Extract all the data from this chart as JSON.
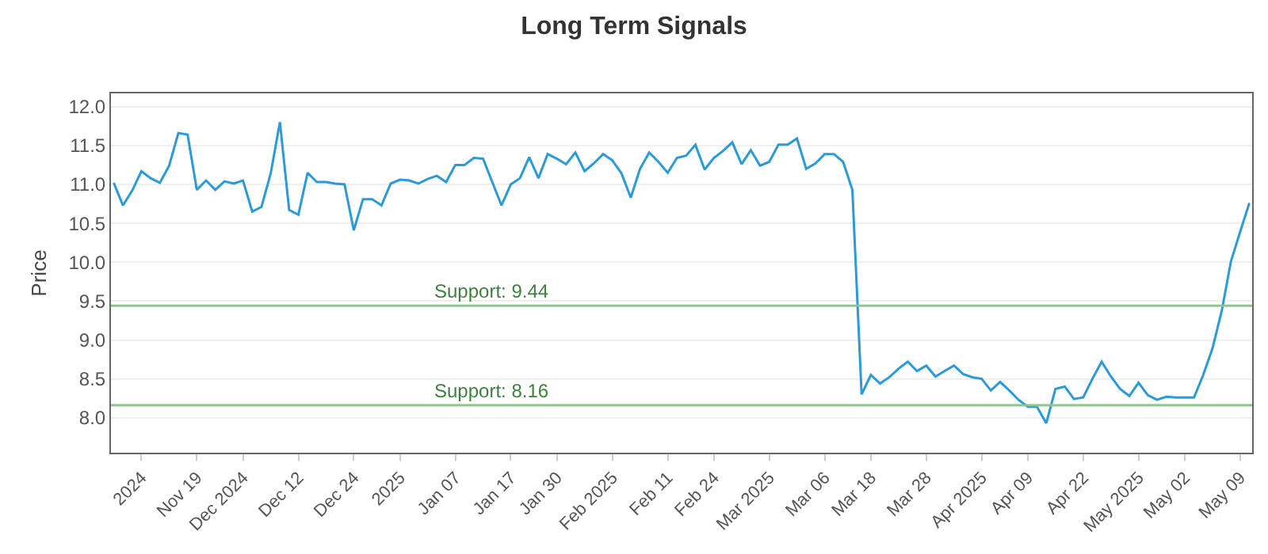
{
  "chart_data": {
    "type": "line",
    "title": "Long Term Signals",
    "ylabel": "Price",
    "categories": [
      null,
      null,
      null,
      "2024",
      null,
      null,
      null,
      null,
      null,
      "Nov 19",
      null,
      null,
      null,
      null,
      "Dec 2024",
      null,
      null,
      null,
      null,
      null,
      "Dec 12",
      null,
      null,
      null,
      null,
      null,
      "Dec 24",
      null,
      null,
      null,
      null,
      "2025",
      null,
      null,
      null,
      null,
      null,
      "Jan 07",
      null,
      null,
      null,
      null,
      null,
      "Jan 17",
      null,
      null,
      null,
      null,
      "Jan 30",
      null,
      null,
      null,
      null,
      null,
      "Feb 2025",
      null,
      null,
      null,
      null,
      null,
      "Feb 11",
      null,
      null,
      null,
      null,
      "Feb 24",
      null,
      null,
      null,
      null,
      null,
      "Mar 2025",
      null,
      null,
      null,
      null,
      null,
      "Mar 06",
      null,
      null,
      null,
      null,
      "Mar 18",
      null,
      null,
      null,
      null,
      null,
      "Mar 28",
      null,
      null,
      null,
      null,
      null,
      "Apr 2025",
      null,
      null,
      null,
      null,
      "Apr 09",
      null,
      null,
      null,
      null,
      null,
      "Apr 22",
      null,
      null,
      null,
      null,
      null,
      "May 2025",
      null,
      null,
      null,
      null,
      "May 02",
      null,
      null,
      null,
      null,
      null,
      "May 09",
      null
    ],
    "series": [
      {
        "color": "#2b9ad6",
        "values": [
          11.02,
          10.73,
          10.92,
          11.17,
          11.08,
          11.02,
          11.24,
          11.66,
          11.64,
          10.93,
          11.05,
          10.93,
          11.04,
          11.01,
          11.05,
          10.65,
          10.71,
          11.14,
          11.8,
          10.67,
          10.61,
          11.15,
          11.03,
          11.03,
          11.01,
          11.0,
          10.41,
          10.81,
          10.81,
          10.73,
          11.01,
          11.06,
          11.05,
          11.01,
          11.07,
          11.11,
          11.03,
          11.25,
          11.25,
          11.34,
          11.33,
          11.03,
          10.73,
          11.0,
          11.08,
          11.35,
          11.08,
          11.39,
          11.33,
          11.26,
          11.41,
          11.17,
          11.27,
          11.39,
          11.31,
          11.14,
          10.83,
          11.2,
          11.41,
          11.29,
          11.15,
          11.34,
          11.37,
          11.51,
          11.19,
          11.34,
          11.43,
          11.54,
          11.26,
          11.44,
          11.24,
          11.29,
          11.51,
          11.51,
          11.59,
          11.2,
          11.27,
          11.39,
          11.39,
          11.29,
          10.93,
          8.3,
          8.55,
          8.44,
          8.52,
          8.63,
          8.72,
          8.6,
          8.67,
          8.53,
          8.6,
          8.67,
          8.56,
          8.52,
          8.5,
          8.35,
          8.46,
          8.35,
          8.23,
          8.14,
          8.14,
          7.93,
          8.37,
          8.4,
          8.24,
          8.26,
          8.5,
          8.72,
          8.53,
          8.37,
          8.28,
          8.45,
          8.29,
          8.23,
          8.27,
          8.26,
          8.26,
          8.26,
          8.55,
          8.89,
          9.37,
          10.01,
          10.39,
          10.76
        ]
      }
    ],
    "ylim": [
      7.55,
      12.17
    ],
    "yticks": [
      {
        "value": 8,
        "label": "8.0"
      },
      8.5,
      {
        "value": 9,
        "label": "9.0"
      },
      9.5,
      {
        "value": 10,
        "label": "10.0"
      },
      10.5,
      {
        "value": 11,
        "label": "11.0"
      },
      11.5,
      {
        "value": 12,
        "label": "12.0"
      }
    ],
    "grid": "y",
    "legend": false,
    "marker": "none",
    "line_style": "solid",
    "ref_lines": [
      {
        "axis": "y",
        "value": 9.44,
        "label": "Support: 9.44",
        "color": "#8cc68c"
      },
      {
        "axis": "y",
        "value": 8.16,
        "label": "Support: 8.16",
        "color": "#8cc68c"
      }
    ]
  }
}
